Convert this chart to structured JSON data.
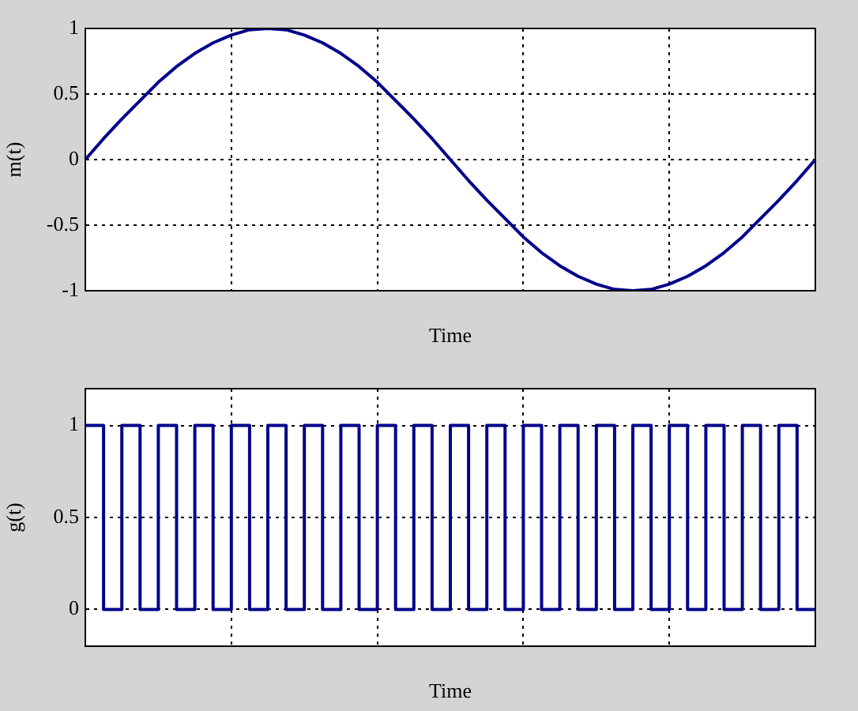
{
  "chart_data": [
    {
      "type": "line",
      "xlabel": "Time",
      "ylabel": "m(t)",
      "color": "#00008b",
      "categories": [
        null,
        null,
        null,
        null,
        null,
        null,
        null,
        null,
        null,
        null,
        null,
        null,
        null,
        null,
        null,
        null,
        null,
        null,
        null,
        null,
        null,
        null,
        null,
        null,
        null,
        null,
        null,
        null,
        null,
        null,
        null,
        null,
        null,
        null,
        null,
        null,
        null,
        null,
        null,
        null,
        null
      ],
      "values": [
        0,
        0.16,
        0.31,
        0.45,
        0.59,
        0.71,
        0.81,
        0.89,
        0.95,
        0.99,
        1,
        0.99,
        0.95,
        0.89,
        0.81,
        0.71,
        0.59,
        0.45,
        0.31,
        0.16,
        0,
        -0.16,
        -0.31,
        -0.45,
        -0.59,
        -0.71,
        -0.81,
        -0.89,
        -0.95,
        -0.99,
        -1,
        -0.99,
        -0.95,
        -0.89,
        -0.81,
        -0.71,
        -0.59,
        -0.45,
        -0.31,
        -0.16,
        0
      ],
      "ylim": [
        -1,
        1
      ],
      "yticks": [
        -1,
        -0.5,
        0,
        0.5,
        1
      ],
      "grid": true,
      "tick_labels": "y"
    },
    {
      "type": "step",
      "xlabel": "Time",
      "ylabel": "g(t)",
      "color": "#00008b",
      "categories": [
        null,
        null,
        null,
        null,
        null,
        null,
        null,
        null,
        null,
        null,
        null,
        null,
        null,
        null,
        null,
        null,
        null,
        null,
        null,
        null,
        null,
        null,
        null,
        null,
        null,
        null,
        null,
        null,
        null,
        null,
        null,
        null,
        null,
        null,
        null,
        null,
        null,
        null,
        null,
        null,
        null
      ],
      "values": [
        1,
        0,
        1,
        0,
        1,
        0,
        1,
        0,
        1,
        0,
        1,
        0,
        1,
        0,
        1,
        0,
        1,
        0,
        1,
        0,
        1,
        0,
        1,
        0,
        1,
        0,
        1,
        0,
        1,
        0,
        1,
        0,
        1,
        0,
        1,
        0,
        1,
        0,
        1,
        0,
        0
      ],
      "ylim": [
        -0.2,
        1.2
      ],
      "yticks": [
        0,
        0.5,
        1
      ],
      "grid": true,
      "tick_labels": "y"
    }
  ]
}
